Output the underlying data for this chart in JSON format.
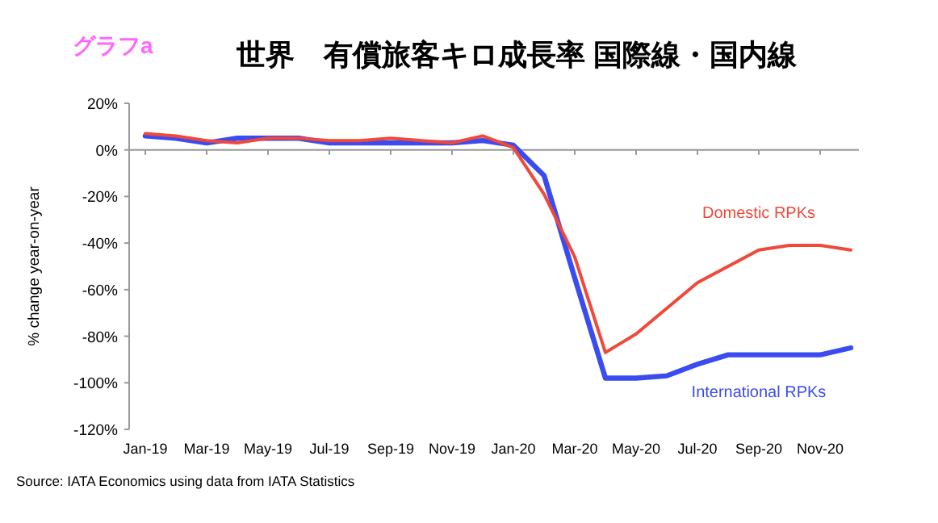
{
  "chart_data": {
    "type": "line",
    "title": "世界　有償旅客キロ成長率 国際線・国内線",
    "ylabel": "% change year-on-year",
    "categories": [
      "Jan-19",
      null,
      "Mar-19",
      null,
      "May-19",
      null,
      "Jul-19",
      null,
      "Sep-19",
      null,
      "Nov-19",
      null,
      "Jan-20",
      null,
      "Mar-20",
      null,
      "May-20",
      null,
      "Jul-20",
      null,
      "Sep-20",
      null,
      "Nov-20",
      null
    ],
    "series": [
      {
        "name": "International RPKs",
        "color": "#3a4cf0",
        "values": [
          6,
          5,
          3,
          5,
          5,
          5,
          3,
          3,
          3,
          3,
          3,
          4,
          2,
          -11,
          -55,
          -98,
          -98,
          -97,
          -92,
          -88,
          -88,
          -88,
          -88,
          -85
        ]
      },
      {
        "name": "Domestic RPKs",
        "color": "#f0483a",
        "values": [
          7,
          6,
          4,
          3,
          5,
          5,
          4,
          4,
          5,
          4,
          3,
          6,
          1,
          -19,
          -46,
          -87,
          -79,
          -68,
          -57,
          -50,
          -43,
          -41,
          -41,
          -43
        ]
      }
    ],
    "ylim": [
      -120,
      20
    ],
    "yticks": [
      {
        "value": 20,
        "label": "20%"
      },
      {
        "value": 0,
        "label": "0%"
      },
      {
        "value": -20,
        "label": "-20%"
      },
      {
        "value": -40,
        "label": "-40%"
      },
      {
        "value": -60,
        "label": "-60%"
      },
      {
        "value": -80,
        "label": "-80%"
      },
      {
        "value": -100,
        "label": "-100%"
      },
      {
        "value": -120,
        "label": "-120%"
      }
    ],
    "marker": "none",
    "line_style": "solid",
    "annotations": [
      "グラフa",
      "Source: IATA Economics using data from IATA Statistics"
    ]
  }
}
